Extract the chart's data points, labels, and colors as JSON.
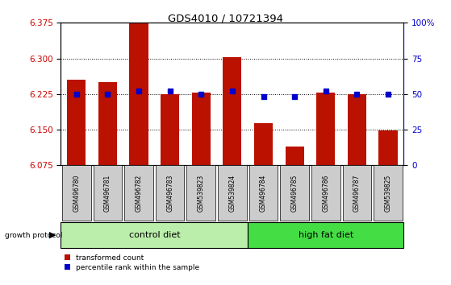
{
  "title": "GDS4010 / 10721394",
  "samples": [
    "GSM496780",
    "GSM496781",
    "GSM496782",
    "GSM496783",
    "GSM539823",
    "GSM539824",
    "GSM496784",
    "GSM496785",
    "GSM496786",
    "GSM496787",
    "GSM539825"
  ],
  "red_values": [
    6.255,
    6.25,
    6.38,
    6.225,
    6.228,
    6.302,
    6.163,
    6.115,
    6.228,
    6.225,
    6.148
  ],
  "blue_values": [
    50,
    50,
    52,
    52,
    50,
    52,
    48,
    48,
    52,
    50,
    50
  ],
  "y_min": 6.075,
  "y_max": 6.375,
  "y_ticks_left": [
    6.075,
    6.15,
    6.225,
    6.3,
    6.375
  ],
  "y_ticks_right": [
    0,
    25,
    50,
    75,
    100
  ],
  "control_n": 6,
  "high_fat_n": 5,
  "control_color": "#BBEEAA",
  "high_fat_color": "#44DD44",
  "bar_color": "#BB1100",
  "dot_color": "#0000CC",
  "axis_color_left": "#CC0000",
  "axis_color_right": "#0000CC",
  "label_box_color": "#CCCCCC",
  "bg_color": "#FFFFFF"
}
